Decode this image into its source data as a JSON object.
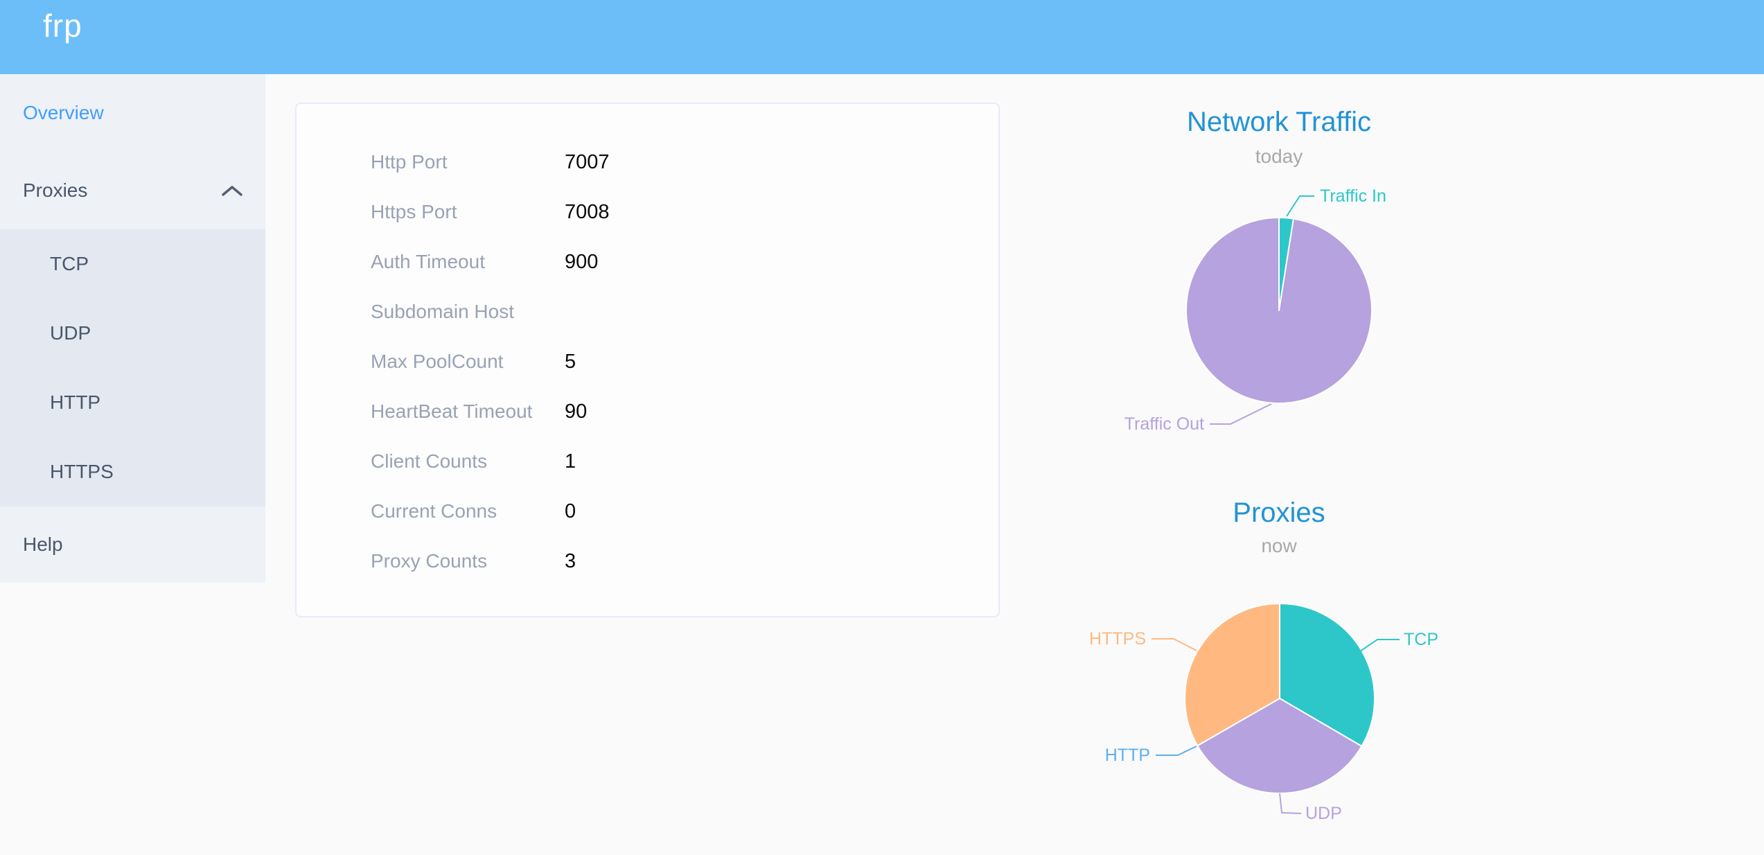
{
  "header": {
    "logo_text": "frp"
  },
  "theme": {
    "header_bg": "#6cbef8",
    "sidebar_bg": "#eef1f6",
    "submenu_bg": "#e4e8f1",
    "sidebar_text": "#48576a",
    "active_link": "#409eff",
    "chart_title_color": "#2193d6",
    "subtitle_color": "#a9a9a9",
    "info_label_color": "#99a2b3"
  },
  "sidebar": {
    "overview_label": "Overview",
    "proxies_label": "Proxies",
    "proxies_children": [
      {
        "label": "TCP"
      },
      {
        "label": "UDP"
      },
      {
        "label": "HTTP"
      },
      {
        "label": "HTTPS"
      }
    ],
    "help_label": "Help"
  },
  "server_info": {
    "rows": [
      {
        "label": "Http Port",
        "value": "7007"
      },
      {
        "label": "Https Port",
        "value": "7008"
      },
      {
        "label": "Auth Timeout",
        "value": "900"
      },
      {
        "label": "Subdomain Host",
        "value": ""
      },
      {
        "label": "Max PoolCount",
        "value": "5"
      },
      {
        "label": "HeartBeat Timeout",
        "value": "90"
      },
      {
        "label": "Client Counts",
        "value": "1"
      },
      {
        "label": "Current Conns",
        "value": "0"
      },
      {
        "label": "Proxy Counts",
        "value": "3"
      }
    ]
  },
  "chart_data": [
    {
      "type": "pie",
      "title": "Network Traffic",
      "subtitle": "today",
      "start_angle": "top",
      "direction": "clockwise",
      "labels": "callout",
      "series": [
        {
          "name": "Traffic In",
          "percent": 2.5,
          "color": "#2ec7c9"
        },
        {
          "name": "Traffic Out",
          "percent": 97.5,
          "color": "#b6a2de"
        }
      ]
    },
    {
      "type": "pie",
      "title": "Proxies",
      "subtitle": "now",
      "start_angle": "top",
      "direction": "clockwise",
      "labels": "callout",
      "series": [
        {
          "name": "TCP",
          "value": 1,
          "percent": 33.4,
          "color": "#2ec7c9"
        },
        {
          "name": "UDP",
          "value": 1,
          "percent": 33.3,
          "color": "#b6a2de"
        },
        {
          "name": "HTTP",
          "value": 0,
          "percent": 0,
          "color": "#5ab1ef"
        },
        {
          "name": "HTTPS",
          "value": 1,
          "percent": 33.3,
          "color": "#ffb980"
        }
      ]
    }
  ]
}
